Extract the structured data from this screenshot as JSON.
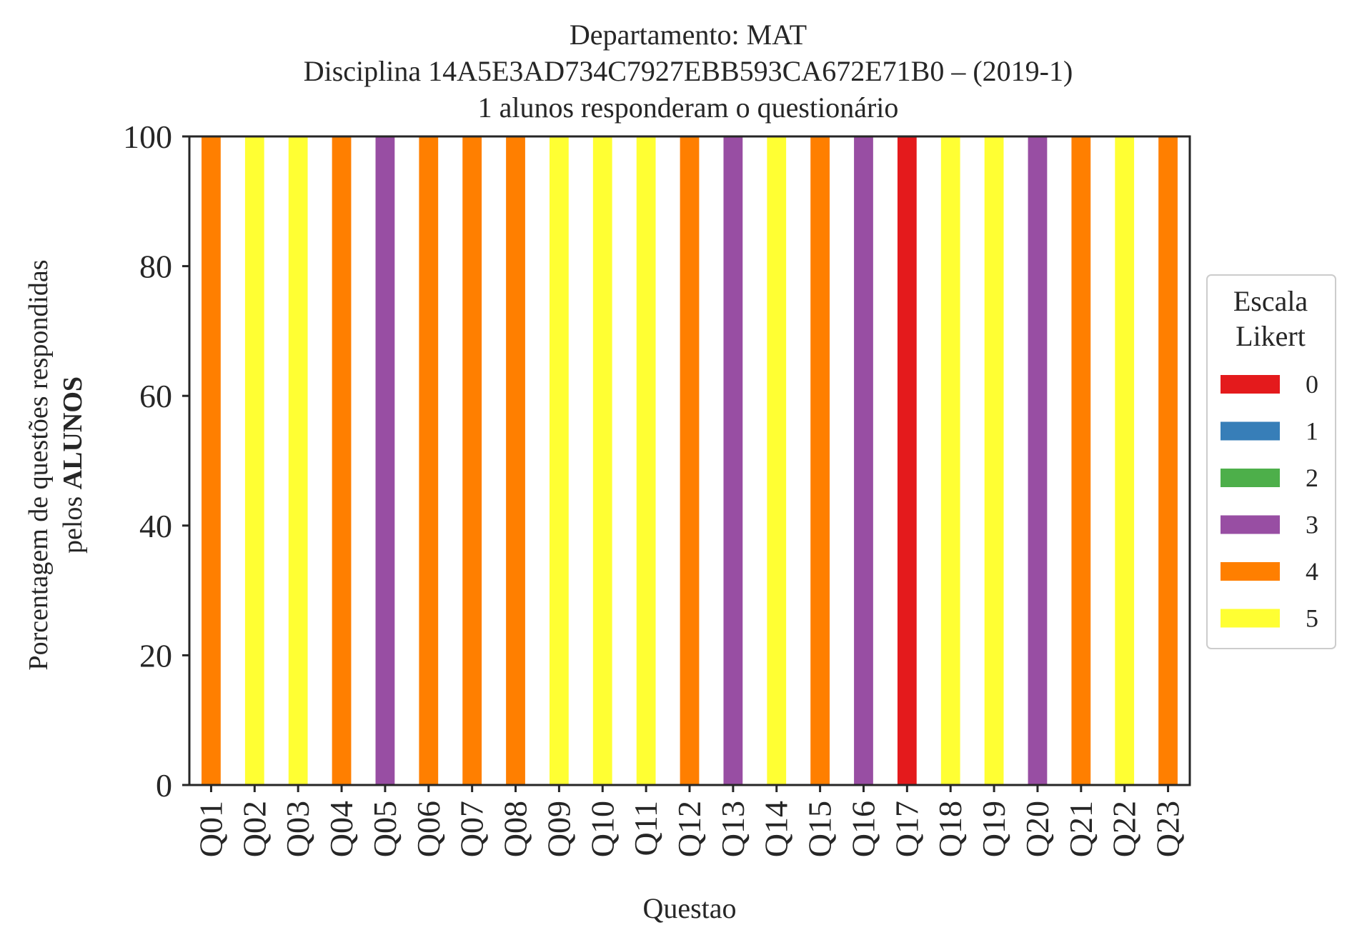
{
  "chart_data": {
    "type": "bar",
    "stacked": true,
    "title_lines": [
      "Departamento: MAT",
      "Disciplina 14A5E3AD734C7927EBB593CA672E71B0 – (2019-1)",
      "1 alunos responderam o questionário"
    ],
    "xlabel": "Questao",
    "ylabel_line1": "Porcentagem de questões respondidas",
    "ylabel_line2_prefix": "pelos ",
    "ylabel_line2_bold": "ALUNOS",
    "ylim": [
      0,
      100
    ],
    "yticks": [
      0,
      20,
      40,
      60,
      80,
      100
    ],
    "grid": false,
    "categories": [
      "Q01",
      "Q02",
      "Q03",
      "Q04",
      "Q05",
      "Q06",
      "Q07",
      "Q08",
      "Q09",
      "Q10",
      "Q11",
      "Q12",
      "Q13",
      "Q14",
      "Q15",
      "Q16",
      "Q17",
      "Q18",
      "Q19",
      "Q20",
      "Q21",
      "Q22",
      "Q23"
    ],
    "series": [
      {
        "name": "0",
        "color": "#e41a1c",
        "values": [
          0,
          0,
          0,
          0,
          0,
          0,
          0,
          0,
          0,
          0,
          0,
          0,
          0,
          0,
          0,
          0,
          100,
          0,
          0,
          0,
          0,
          0,
          0
        ]
      },
      {
        "name": "1",
        "color": "#377eb8",
        "values": [
          0,
          0,
          0,
          0,
          0,
          0,
          0,
          0,
          0,
          0,
          0,
          0,
          0,
          0,
          0,
          0,
          0,
          0,
          0,
          0,
          0,
          0,
          0
        ]
      },
      {
        "name": "2",
        "color": "#4daf4a",
        "values": [
          0,
          0,
          0,
          0,
          0,
          0,
          0,
          0,
          0,
          0,
          0,
          0,
          0,
          0,
          0,
          0,
          0,
          0,
          0,
          0,
          0,
          0,
          0
        ]
      },
      {
        "name": "3",
        "color": "#984ea3",
        "values": [
          0,
          0,
          0,
          0,
          100,
          0,
          0,
          0,
          0,
          0,
          0,
          0,
          100,
          0,
          0,
          100,
          0,
          0,
          0,
          100,
          0,
          0,
          0
        ]
      },
      {
        "name": "4",
        "color": "#ff7f00",
        "values": [
          100,
          0,
          0,
          100,
          0,
          100,
          100,
          100,
          0,
          0,
          0,
          100,
          0,
          0,
          100,
          0,
          0,
          0,
          0,
          0,
          100,
          0,
          100
        ]
      },
      {
        "name": "5",
        "color": "#ffff33",
        "values": [
          0,
          100,
          100,
          0,
          0,
          0,
          0,
          0,
          100,
          100,
          100,
          0,
          0,
          100,
          0,
          0,
          0,
          100,
          100,
          0,
          0,
          100,
          0
        ]
      }
    ],
    "legend": {
      "title_lines": [
        "Escala",
        "Likert"
      ],
      "placement": "center-right outside"
    }
  }
}
